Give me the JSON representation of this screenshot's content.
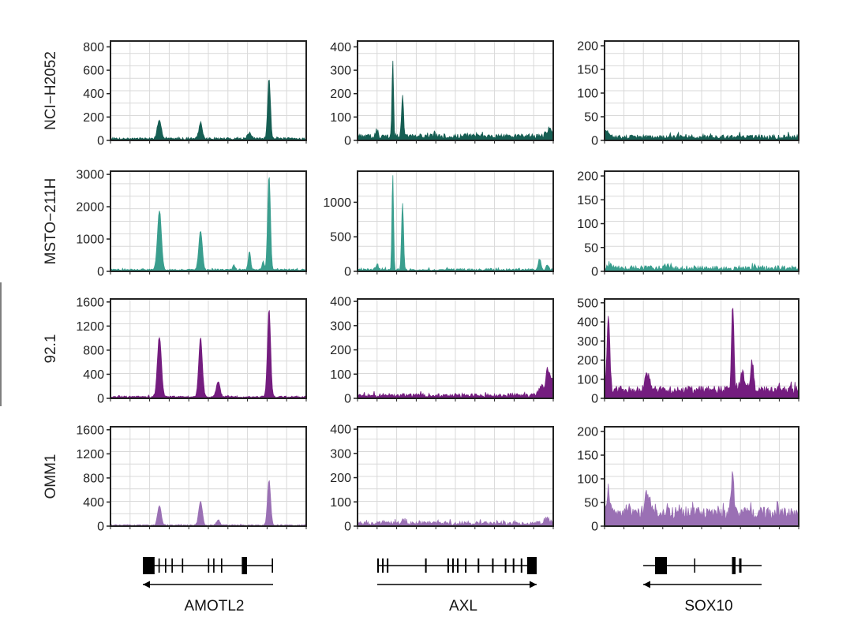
{
  "chart_data": {
    "type": "area",
    "grid": true,
    "colors": {
      "NCI-H2052": "#165e53",
      "MSTO-211H": "#3a9e8e",
      "92.1": "#741d7f",
      "OMM1": "#9a70b4",
      "axis": "#222222",
      "grid": "#d9d9d9"
    },
    "rows": [
      "NCI−H2052",
      "MSTO−211H",
      "92.1",
      "OMM1"
    ],
    "row_keys": [
      "NCI-H2052",
      "MSTO-211H",
      "92.1",
      "OMM1"
    ],
    "columns": [
      "AMOTL2",
      "AXL",
      "SOX10"
    ],
    "panels": [
      [
        {
          "ylim": [
            0,
            850
          ],
          "yticks": [
            0,
            200,
            400,
            600,
            800
          ],
          "baseline": 15,
          "noise": 10,
          "peaks": [
            [
              0.25,
              150,
              0.01
            ],
            [
              0.46,
              125,
              0.009
            ],
            [
              0.71,
              50,
              0.009
            ],
            [
              0.81,
              520,
              0.007
            ]
          ]
        },
        {
          "ylim": [
            0,
            425
          ],
          "yticks": [
            0,
            100,
            200,
            300,
            400
          ],
          "baseline": 18,
          "noise": 10,
          "peaks": [
            [
              0.1,
              15,
              0.006
            ],
            [
              0.18,
              325,
              0.004
            ],
            [
              0.23,
              170,
              0.005
            ],
            [
              0.98,
              30,
              0.015
            ]
          ]
        },
        {
          "ylim": [
            0,
            210
          ],
          "yticks": [
            0,
            50,
            100,
            150,
            200
          ],
          "baseline": 7,
          "noise": 5,
          "peaks": [
            [
              0.01,
              12,
              0.01
            ]
          ]
        }
      ],
      [
        {
          "ylim": [
            0,
            3100
          ],
          "yticks": [
            0,
            1000,
            2000,
            3000
          ],
          "baseline": 50,
          "noise": 25,
          "peaks": [
            [
              0.25,
              1800,
              0.01
            ],
            [
              0.46,
              1200,
              0.009
            ],
            [
              0.63,
              150,
              0.006
            ],
            [
              0.71,
              550,
              0.006
            ],
            [
              0.78,
              250,
              0.005
            ],
            [
              0.81,
              2950,
              0.007
            ]
          ]
        },
        {
          "ylim": [
            0,
            1450
          ],
          "yticks": [
            0,
            500,
            1000
          ],
          "baseline": 25,
          "noise": 15,
          "peaks": [
            [
              0.1,
              90,
              0.005
            ],
            [
              0.18,
              1400,
              0.004
            ],
            [
              0.23,
              960,
              0.005
            ],
            [
              0.93,
              150,
              0.007
            ],
            [
              0.97,
              80,
              0.006
            ]
          ]
        },
        {
          "ylim": [
            0,
            210
          ],
          "yticks": [
            0,
            50,
            100,
            150,
            200
          ],
          "baseline": 7,
          "noise": 5,
          "peaks": [
            [
              0.03,
              5,
              0.01
            ],
            [
              0.32,
              6,
              0.008
            ]
          ]
        }
      ],
      [
        {
          "ylim": [
            0,
            1650
          ],
          "yticks": [
            0,
            400,
            800,
            1200,
            1600
          ],
          "baseline": 25,
          "noise": 15,
          "peaks": [
            [
              0.25,
              1000,
              0.01
            ],
            [
              0.46,
              980,
              0.009
            ],
            [
              0.55,
              260,
              0.009
            ],
            [
              0.81,
              1450,
              0.008
            ]
          ]
        },
        {
          "ylim": [
            0,
            410
          ],
          "yticks": [
            0,
            100,
            200,
            300,
            400
          ],
          "baseline": 12,
          "noise": 8,
          "peaks": [
            [
              0.94,
              40,
              0.012
            ],
            [
              0.97,
              100,
              0.008
            ],
            [
              0.99,
              70,
              0.01
            ]
          ]
        },
        {
          "ylim": [
            0,
            520
          ],
          "yticks": [
            0,
            100,
            200,
            300,
            400,
            500
          ],
          "baseline": 45,
          "noise": 20,
          "peaks": [
            [
              0.02,
              400,
              0.007
            ],
            [
              0.22,
              80,
              0.012
            ],
            [
              0.66,
              460,
              0.006
            ],
            [
              0.71,
              100,
              0.01
            ],
            [
              0.76,
              150,
              0.007
            ]
          ]
        }
      ],
      [
        {
          "ylim": [
            0,
            1650
          ],
          "yticks": [
            0,
            400,
            800,
            1200,
            1600
          ],
          "baseline": 15,
          "noise": 10,
          "peaks": [
            [
              0.25,
              330,
              0.009
            ],
            [
              0.46,
              400,
              0.009
            ],
            [
              0.55,
              90,
              0.008
            ],
            [
              0.81,
              750,
              0.008
            ]
          ]
        },
        {
          "ylim": [
            0,
            410
          ],
          "yticks": [
            0,
            100,
            200,
            300,
            400
          ],
          "baseline": 12,
          "noise": 8,
          "peaks": [
            [
              0.23,
              10,
              0.01
            ],
            [
              0.97,
              20,
              0.012
            ]
          ]
        },
        {
          "ylim": [
            0,
            210
          ],
          "yticks": [
            0,
            50,
            100,
            150,
            200
          ],
          "baseline": 28,
          "noise": 12,
          "peaks": [
            [
              0.02,
              50,
              0.007
            ],
            [
              0.12,
              15,
              0.01
            ],
            [
              0.22,
              45,
              0.012
            ],
            [
              0.66,
              95,
              0.006
            ]
          ]
        }
      ]
    ],
    "genes": [
      {
        "name": "AMOTL2",
        "strand": "minus",
        "span": [
          0.0,
          1.0
        ],
        "exons": [
          [
            0.0,
            0.09
          ],
          [
            0.12,
            0.13
          ],
          [
            0.17,
            0.18
          ],
          [
            0.22,
            0.23
          ],
          [
            0.3,
            0.31
          ],
          [
            0.5,
            0.51
          ],
          [
            0.54,
            0.55
          ],
          [
            0.6,
            0.61
          ],
          [
            0.76,
            0.8
          ],
          [
            0.99,
            1.0
          ]
        ]
      },
      {
        "name": "AXL",
        "strand": "plus",
        "span": [
          0.0,
          1.0
        ],
        "exons": [
          [
            0.0,
            0.01
          ],
          [
            0.03,
            0.04
          ],
          [
            0.06,
            0.07
          ],
          [
            0.3,
            0.31
          ],
          [
            0.44,
            0.45
          ],
          [
            0.47,
            0.48
          ],
          [
            0.5,
            0.51
          ],
          [
            0.55,
            0.56
          ],
          [
            0.63,
            0.64
          ],
          [
            0.72,
            0.73
          ],
          [
            0.8,
            0.81
          ],
          [
            0.85,
            0.86
          ],
          [
            0.9,
            0.91
          ],
          [
            0.94,
            1.0
          ]
        ]
      },
      {
        "name": "SOX10",
        "strand": "minus",
        "span": [
          0.0,
          1.0
        ],
        "exons": [
          [
            0.1,
            0.2
          ],
          [
            0.43,
            0.44
          ],
          [
            0.75,
            0.78
          ],
          [
            0.81,
            0.83
          ]
        ]
      }
    ]
  }
}
